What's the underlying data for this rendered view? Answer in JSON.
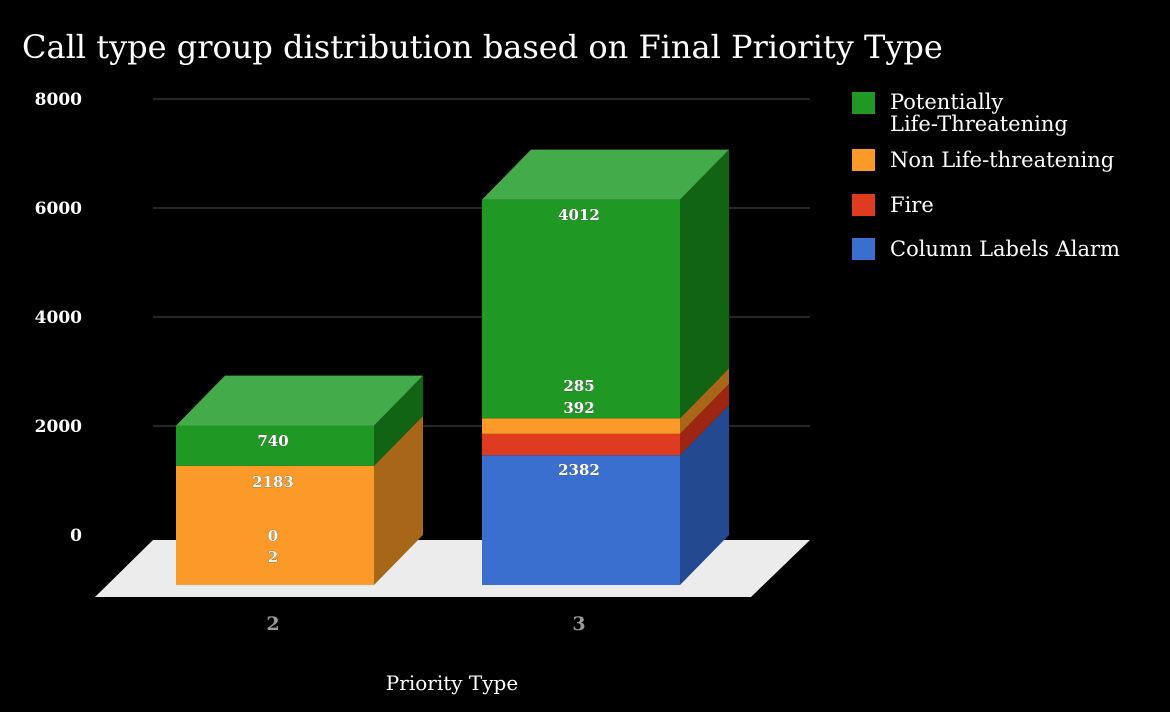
{
  "chart_data": {
    "type": "bar",
    "title": "Call type group distribution based on Final Priority Type",
    "xlabel": "Priority Type",
    "ylabel": "",
    "ylim": [
      0,
      8000
    ],
    "yticks": [
      "0",
      "2000",
      "4000",
      "6000",
      "8000"
    ],
    "grid": true,
    "stacked": true,
    "three_d": true,
    "legend_position": "right",
    "categories": [
      "2",
      "3"
    ],
    "series": [
      {
        "name": "Column Labels Alarm",
        "color": "#3a6fcf",
        "side_color": "#234a90",
        "top_color": "#5b8ae0",
        "values": [
          2,
          2382
        ]
      },
      {
        "name": "Fire",
        "color": "#de3b20",
        "side_color": "#9c2612",
        "top_color": "#ea6347",
        "values": [
          0,
          392
        ]
      },
      {
        "name": "Non Life-threatening",
        "color": "#fb9a28",
        "side_color": "#a86618",
        "top_color": "#fdb45a",
        "values": [
          2183,
          285
        ]
      },
      {
        "name": "Potentially Life-Threatening",
        "legend_lines": [
          "Potentially",
          "Life-Threatening"
        ],
        "color": "#1f9824",
        "side_color": "#126415",
        "top_color": "#44ab4b",
        "values": [
          740,
          4012
        ]
      }
    ]
  }
}
